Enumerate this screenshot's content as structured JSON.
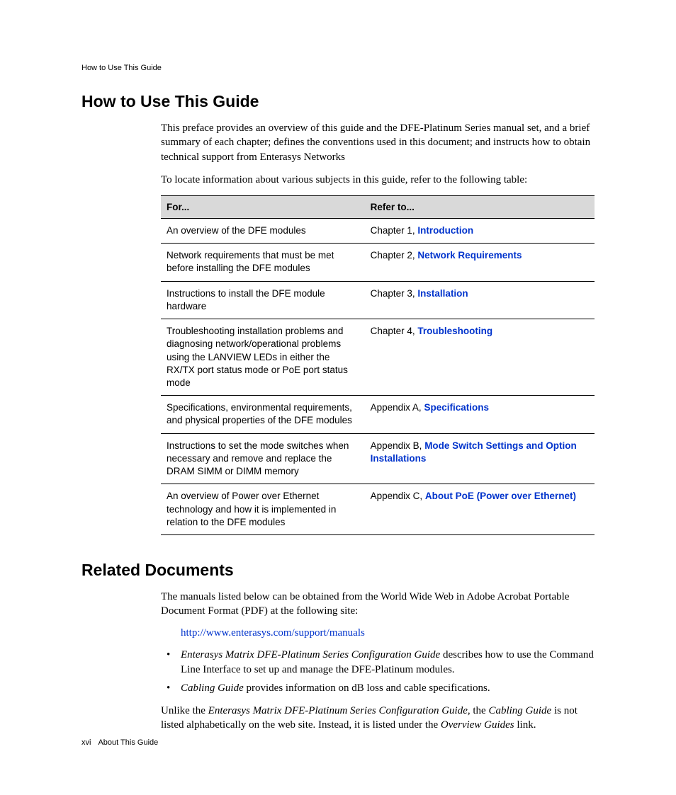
{
  "runningHeader": "How to Use This Guide",
  "section1": {
    "title": "How to Use This Guide",
    "para1": "This preface provides an overview of this guide and the DFE‑Platinum Series manual set, and a brief summary of each chapter; defines the conventions used in this document; and instructs how to obtain technical support from Enterasys Networks",
    "para2": "To locate information about various subjects in this guide, refer to the following table:"
  },
  "table": {
    "head": {
      "for": "For...",
      "refer": "Refer to..."
    },
    "rows": [
      {
        "for": "An overview of the DFE modules",
        "referPrefix": "Chapter 1, ",
        "referLink": "Introduction",
        "referSuffix": ""
      },
      {
        "for": "Network requirements that must be met before installing the DFE modules",
        "referPrefix": "Chapter 2, ",
        "referLink": "Network Requirements",
        "referSuffix": ""
      },
      {
        "for": "Instructions to install the DFE module hardware",
        "referPrefix": "Chapter 3, ",
        "referLink": "Installation",
        "referSuffix": ""
      },
      {
        "for": "Troubleshooting installation problems and diagnosing network/operational problems using the LANVIEW LEDs in either the RX/TX port status mode or PoE port status mode",
        "referPrefix": "Chapter 4, ",
        "referLink": "Troubleshooting",
        "referSuffix": ""
      },
      {
        "for": "Specifications, environmental requirements, and physical properties of the DFE modules",
        "referPrefix": "Appendix A, ",
        "referLink": "Specifications",
        "referSuffix": ""
      },
      {
        "for": "Instructions to set the mode switches when necessary and remove and replace the DRAM SIMM or DIMM memory",
        "referPrefix": "Appendix B, ",
        "referLink": "Mode Switch Settings and Option Installations",
        "referSuffix": ""
      },
      {
        "for": "An overview of Power over Ethernet technology and how it is implemented in relation to the DFE modules",
        "referPrefix": "Appendix C, ",
        "referLink": "About PoE (Power over Ethernet)",
        "referSuffix": ""
      }
    ]
  },
  "section2": {
    "title": "Related Documents",
    "para1": "The manuals listed below can be obtained from the World Wide Web in Adobe Acrobat Portable Document Format (PDF) at the following site:",
    "url": "http://www.enterasys.com/support/manuals",
    "bullet1_italic": "Enterasys Matrix DFE‑Platinum Series Configuration Guide",
    "bullet1_rest": " describes how to use the Command Line Interface to set up and manage the DFE‑Platinum modules.",
    "bullet2_italic": "Cabling Guide",
    "bullet2_rest": " provides information on dB loss and cable specifications.",
    "para2_a": "Unlike the ",
    "para2_b": "Enterasys Matrix DFE‑Platinum Series Configuration Guide,",
    "para2_c": " the ",
    "para2_d": "Cabling Guide",
    "para2_e": " is not listed alphabetically on the web site. Instead, it is listed under the ",
    "para2_f": "Overview Guides",
    "para2_g": " link."
  },
  "footer": {
    "page": "xvi",
    "label": "About This Guide"
  }
}
